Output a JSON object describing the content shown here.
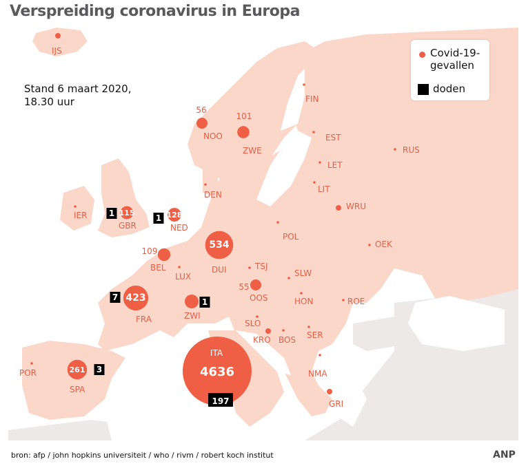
{
  "title": "Verspreiding coronavirus in Europa",
  "stand": [
    "Stand 6 maart 2020,",
    "18.30 uur"
  ],
  "legend": {
    "cases_label_line1": "Covid-19-",
    "cases_label_line2": "gevallen",
    "deaths_label": "doden"
  },
  "colors": {
    "land": "#fbd7ca",
    "nonEU_land": "#ece9e8",
    "sea": "#ffffff",
    "marker": "#ee5f45",
    "label": "#e06048",
    "death_box": "#000000",
    "title": "#5a5a5c"
  },
  "source": "bron:  afp / john hopkins universiteit / who / rivm  / robert koch institut",
  "agency": "ANP",
  "countries": [
    {
      "code": "IJS",
      "cases": null,
      "deaths": null
    },
    {
      "code": "NOO",
      "cases": 56,
      "deaths": null
    },
    {
      "code": "ZWE",
      "cases": 101,
      "deaths": null
    },
    {
      "code": "FIN",
      "cases": null,
      "deaths": null
    },
    {
      "code": "EST",
      "cases": null,
      "deaths": null
    },
    {
      "code": "LET",
      "cases": null,
      "deaths": null
    },
    {
      "code": "LIT",
      "cases": null,
      "deaths": null
    },
    {
      "code": "RUS",
      "cases": null,
      "deaths": null
    },
    {
      "code": "DEN",
      "cases": null,
      "deaths": null
    },
    {
      "code": "IER",
      "cases": null,
      "deaths": null
    },
    {
      "code": "GBR",
      "cases": 115,
      "deaths": 1
    },
    {
      "code": "NED",
      "cases": 128,
      "deaths": 1
    },
    {
      "code": "WRU",
      "cases": null,
      "deaths": null
    },
    {
      "code": "POL",
      "cases": null,
      "deaths": null
    },
    {
      "code": "OEK",
      "cases": null,
      "deaths": null
    },
    {
      "code": "BEL",
      "cases": 109,
      "deaths": null
    },
    {
      "code": "DUI",
      "cases": 534,
      "deaths": null
    },
    {
      "code": "LUX",
      "cases": null,
      "deaths": null
    },
    {
      "code": "TSJ",
      "cases": null,
      "deaths": null
    },
    {
      "code": "SLW",
      "cases": null,
      "deaths": null
    },
    {
      "code": "OOS",
      "cases": 55,
      "deaths": null
    },
    {
      "code": "FRA",
      "cases": 423,
      "deaths": 7
    },
    {
      "code": "ZWI",
      "cases": null,
      "deaths": 1
    },
    {
      "code": "HON",
      "cases": null,
      "deaths": null
    },
    {
      "code": "ROE",
      "cases": null,
      "deaths": null
    },
    {
      "code": "SLO",
      "cases": null,
      "deaths": null
    },
    {
      "code": "KRO",
      "cases": null,
      "deaths": null
    },
    {
      "code": "BOS",
      "cases": null,
      "deaths": null
    },
    {
      "code": "SER",
      "cases": null,
      "deaths": null
    },
    {
      "code": "ITA",
      "cases": 4636,
      "deaths": 197
    },
    {
      "code": "NMA",
      "cases": null,
      "deaths": null
    },
    {
      "code": "GRI",
      "cases": null,
      "deaths": null
    },
    {
      "code": "POR",
      "cases": null,
      "deaths": null
    },
    {
      "code": "SPA",
      "cases": 261,
      "deaths": 3
    }
  ]
}
